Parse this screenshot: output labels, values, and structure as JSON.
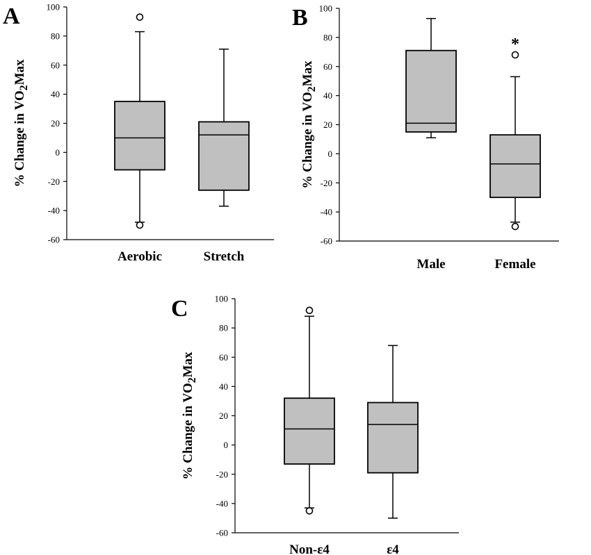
{
  "chart_data": [
    {
      "type": "box",
      "panel_label": "A",
      "ylabel": "% Change in VO2Max",
      "ylabel_sub": "2",
      "ylim": [
        -60,
        100
      ],
      "yticks": [
        -60,
        -40,
        -20,
        0,
        20,
        40,
        60,
        80,
        100
      ],
      "categories": [
        "Aerobic",
        "Stretch"
      ],
      "boxes": [
        {
          "category": "Aerobic",
          "whisker_low": -48,
          "q1": -12,
          "median": 10,
          "q3": 35,
          "whisker_high": 83,
          "outliers": [
            93,
            -50
          ],
          "annotation": ""
        },
        {
          "category": "Stretch",
          "whisker_low": -37,
          "q1": -26,
          "median": 12,
          "q3": 21,
          "whisker_high": 71,
          "outliers": [],
          "annotation": ""
        }
      ]
    },
    {
      "type": "box",
      "panel_label": "B",
      "ylabel": "% Change in VO2Max",
      "ylabel_sub": "2",
      "ylim": [
        -60,
        100
      ],
      "yticks": [
        -60,
        -40,
        -20,
        0,
        20,
        40,
        60,
        80,
        100
      ],
      "categories": [
        "Male",
        "Female"
      ],
      "boxes": [
        {
          "category": "Male",
          "whisker_low": 11,
          "q1": 15,
          "median": 21,
          "q3": 71,
          "whisker_high": 93,
          "outliers": [],
          "annotation": ""
        },
        {
          "category": "Female",
          "whisker_low": -47,
          "q1": -30,
          "median": -7,
          "q3": 13,
          "whisker_high": 53,
          "outliers": [
            68,
            -50
          ],
          "annotation": "*"
        }
      ]
    },
    {
      "type": "box",
      "panel_label": "C",
      "ylabel": "% Change in VO2Max",
      "ylabel_sub": "2",
      "ylim": [
        -60,
        100
      ],
      "yticks": [
        -60,
        -40,
        -20,
        0,
        20,
        40,
        60,
        80,
        100
      ],
      "categories": [
        "Non-ε4",
        "ε4"
      ],
      "boxes": [
        {
          "category": "Non-ε4",
          "whisker_low": -43,
          "q1": -13,
          "median": 11,
          "q3": 32,
          "whisker_high": 88,
          "outliers": [
            92,
            -45
          ],
          "annotation": ""
        },
        {
          "category": "ε4",
          "whisker_low": -50,
          "q1": -19,
          "median": 14,
          "q3": 29,
          "whisker_high": 68,
          "outliers": [],
          "annotation": ""
        }
      ]
    }
  ],
  "colors": {
    "box_fill": "#c0c0c0",
    "stroke": "#000000",
    "outlier_fill": "#ffffff"
  }
}
